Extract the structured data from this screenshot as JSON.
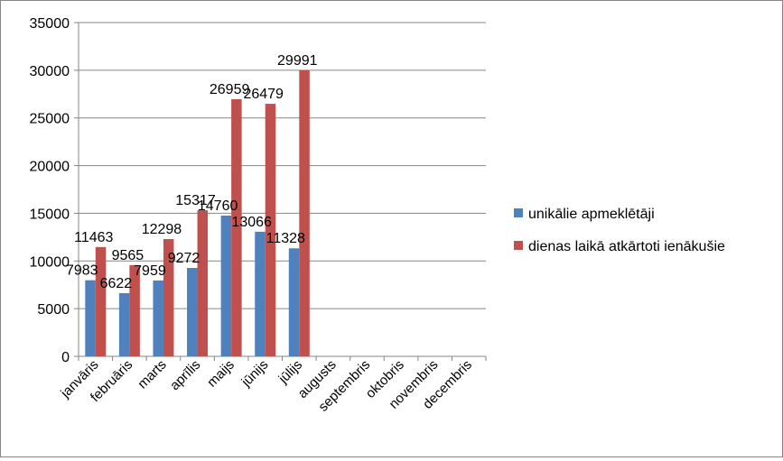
{
  "chart_data": {
    "type": "bar",
    "categories": [
      "janvāris",
      "februāris",
      "marts",
      "aprīlis",
      "maijs",
      "jūnijs",
      "jūlijs",
      "augusts",
      "septembris",
      "oktobris",
      "novembris",
      "decembris"
    ],
    "series": [
      {
        "name": "unikālie apmeklētāji",
        "color": "#4f81bd",
        "values": [
          7983,
          6622,
          7959,
          9272,
          14760,
          13066,
          11328,
          null,
          null,
          null,
          null,
          null
        ]
      },
      {
        "name": "dienas laikā atkārtoti ienākušie",
        "color": "#c0504d",
        "values": [
          11463,
          9565,
          12298,
          15317,
          26959,
          26479,
          29991,
          null,
          null,
          null,
          null,
          null
        ]
      }
    ],
    "ylim": [
      0,
      35000
    ],
    "yticks": [
      0,
      5000,
      10000,
      15000,
      20000,
      25000,
      30000,
      35000
    ],
    "grid": true,
    "legend": "right",
    "data_labels": true
  }
}
